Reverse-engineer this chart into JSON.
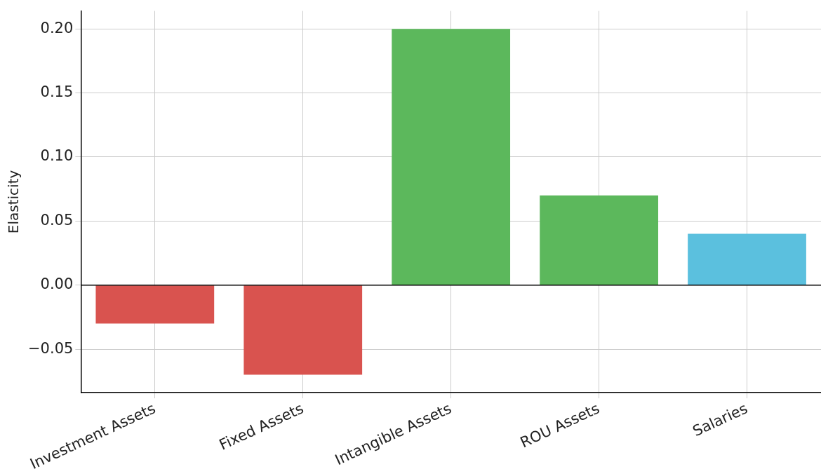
{
  "chart_data": {
    "type": "bar",
    "ylabel": "Elasticity",
    "categories": [
      "Investment Assets",
      "Fixed Assets",
      "Intangible Assets",
      "ROU Assets",
      "Salaries"
    ],
    "values": [
      -0.03,
      -0.07,
      0.2,
      0.07,
      0.04
    ],
    "colors": [
      "#d9534f",
      "#d9534f",
      "#5cb85c",
      "#5cb85c",
      "#5bc0de"
    ],
    "ylim": [
      -0.084,
      0.214
    ],
    "yticks": [
      {
        "value": -0.05,
        "label": "−0.05"
      },
      {
        "value": 0,
        "label": "0.00"
      },
      {
        "value": 0.05,
        "label": "0.05"
      },
      {
        "value": 0.1,
        "label": "0.10"
      },
      {
        "value": 0.15,
        "label": "0.15"
      },
      {
        "value": 0.2,
        "label": "0.20"
      }
    ],
    "grid": true,
    "ref_lines": [
      {
        "axis": "y",
        "value": 0,
        "color": "#000000"
      }
    ]
  }
}
